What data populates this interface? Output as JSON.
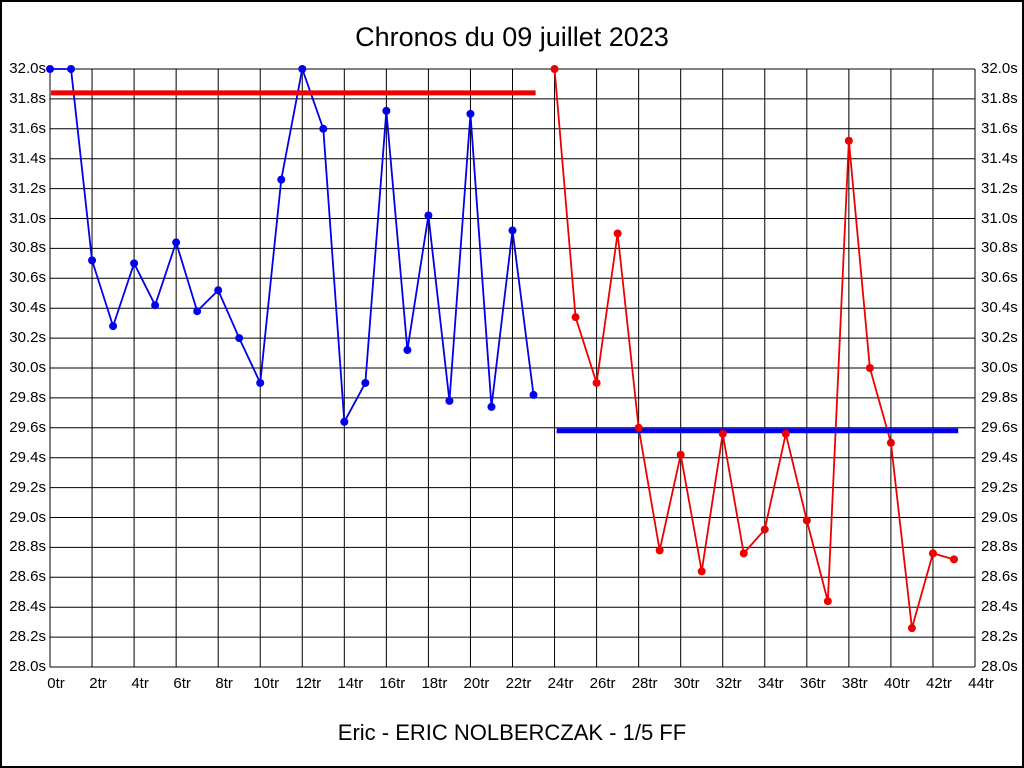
{
  "chart_data": {
    "type": "line",
    "title": "Chronos du 09 juillet 2023",
    "footer": "Eric - ERIC NOLBERCZAK - 1/5 FF",
    "xlim": [
      0,
      44
    ],
    "ylim": [
      28.0,
      32.0
    ],
    "x_tick_step": 2,
    "y_tick_step": 0.2,
    "grid": true,
    "x_unit": "tr",
    "y_unit": "s",
    "x_ticks": [
      "0tr",
      "2tr",
      "4tr",
      "6tr",
      "8tr",
      "10tr",
      "12tr",
      "14tr",
      "16tr",
      "18tr",
      "20tr",
      "22tr",
      "24tr",
      "26tr",
      "28tr",
      "30tr",
      "32tr",
      "34tr",
      "36tr",
      "38tr",
      "40tr",
      "42tr",
      "44tr"
    ],
    "y_ticks": [
      "32.0s",
      "31.8s",
      "31.6s",
      "31.4s",
      "31.2s",
      "31.0s",
      "30.8s",
      "30.6s",
      "30.4s",
      "30.2s",
      "30.0s",
      "29.8s",
      "29.6s",
      "29.4s",
      "29.2s",
      "29.0s",
      "28.8s",
      "28.6s",
      "28.4s",
      "28.2s",
      "28.0s"
    ],
    "series": [
      {
        "name": "laps-first-stint-blue",
        "color": "#0000ee",
        "x_start": 0,
        "values": [
          32.0,
          32.0,
          30.72,
          30.28,
          30.7,
          30.42,
          30.84,
          30.38,
          30.52,
          30.2,
          29.9,
          31.26,
          32.0,
          31.6,
          29.64,
          29.9,
          31.72,
          30.12,
          31.02,
          29.78,
          31.7,
          29.74,
          30.92,
          29.82
        ]
      },
      {
        "name": "laps-second-stint-red",
        "color": "#ee0000",
        "x_start": 24,
        "values": [
          32.0,
          30.34,
          29.9,
          30.9,
          29.6,
          28.78,
          29.42,
          28.64,
          29.56,
          28.76,
          28.92,
          29.56,
          28.98,
          28.44,
          31.52,
          30.0,
          29.5,
          28.26,
          28.76,
          28.72
        ]
      }
    ],
    "reference_lines": [
      {
        "name": "red-reference-line",
        "color": "#ee0000",
        "y": 31.84,
        "x_from": 0.05,
        "x_to": 23.1
      },
      {
        "name": "blue-reference-line",
        "color": "#0000ee",
        "y": 29.58,
        "x_from": 24.1,
        "x_to": 43.2
      }
    ]
  }
}
